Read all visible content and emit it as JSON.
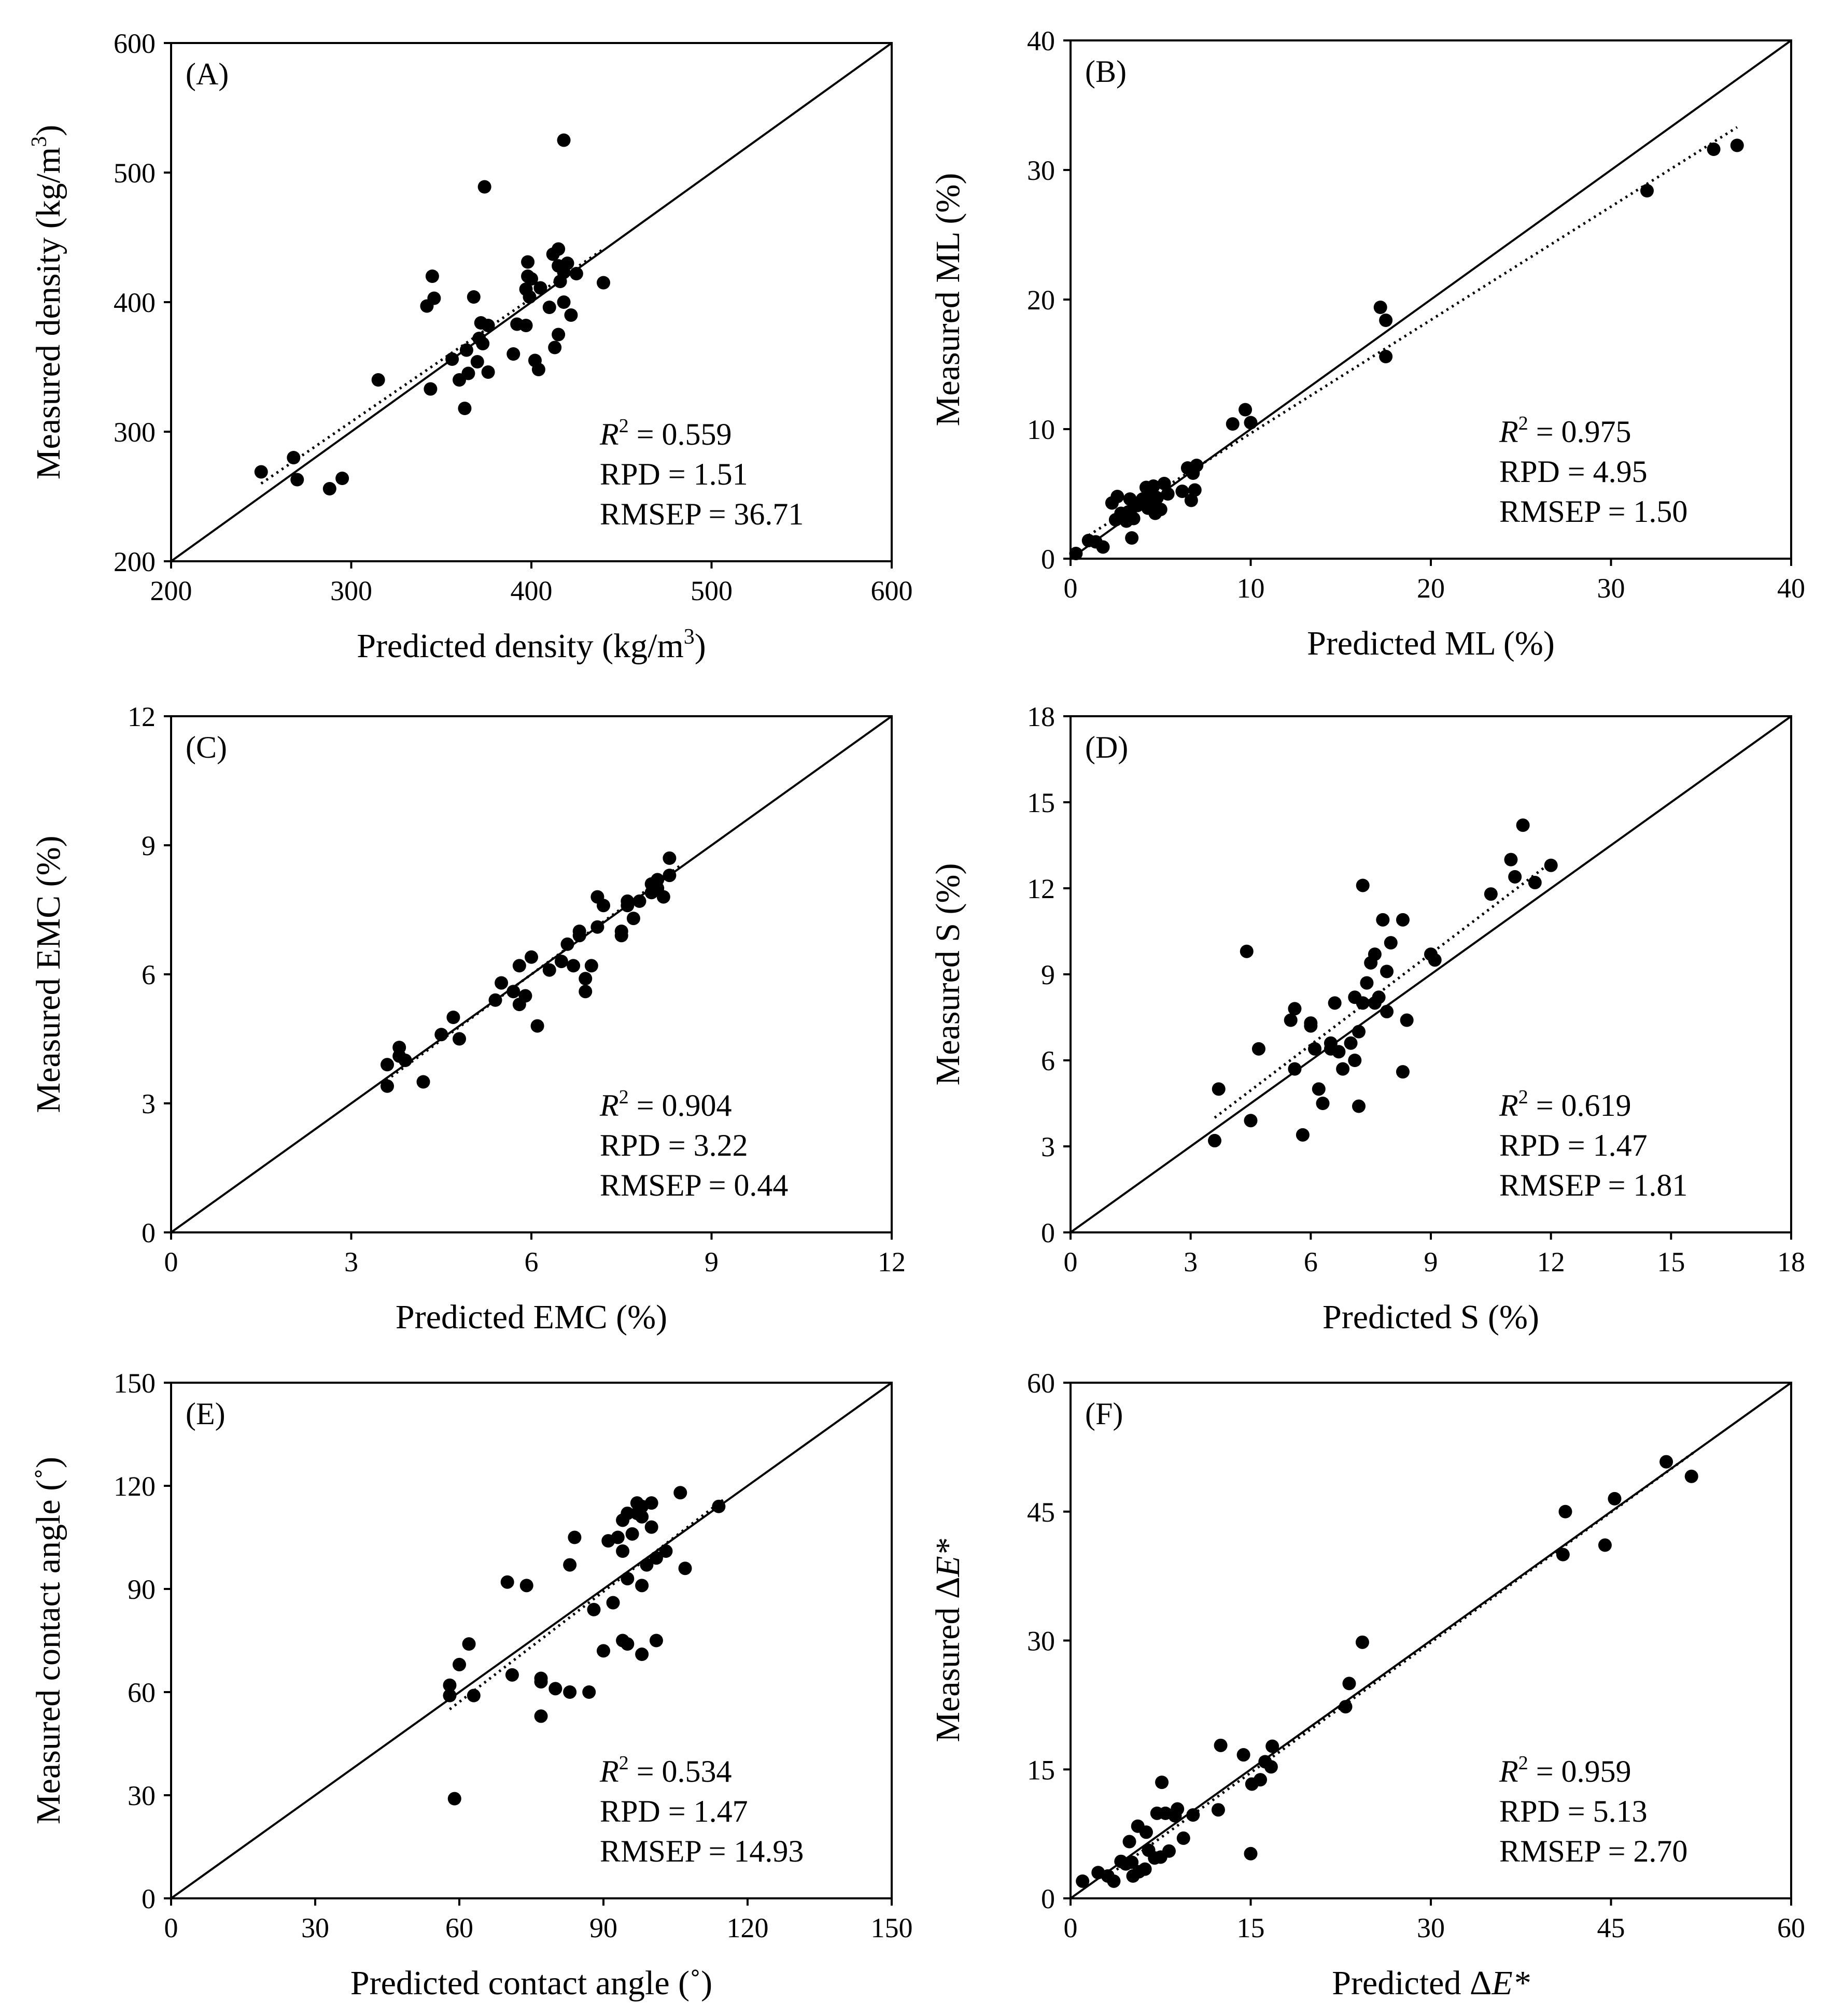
{
  "figure": {
    "background": "#ffffff",
    "ink": "#000000"
  },
  "chart_data": [
    {
      "type": "scatter",
      "panel": "(A)",
      "xlabel_main": "Predicted density (kg/m",
      "xlabel_sup": "3",
      "xlabel_end": ")",
      "ylabel_main": "Measured density (kg/m",
      "ylabel_sup": "3",
      "ylabel_end": ")",
      "xlim": [
        200,
        600
      ],
      "ylim": [
        200,
        600
      ],
      "xticks": [
        200,
        300,
        400,
        500,
        600
      ],
      "yticks": [
        200,
        300,
        400,
        500,
        600
      ],
      "stats": {
        "r2": "0.559",
        "rpd": "1.51",
        "rmsep": "36.71"
      },
      "fit_line": {
        "x": [
          250,
          440
        ],
        "y": [
          260,
          441
        ]
      },
      "points": [
        [
          250,
          269
        ],
        [
          268,
          280
        ],
        [
          270,
          263
        ],
        [
          288,
          256
        ],
        [
          295,
          264
        ],
        [
          315,
          340
        ],
        [
          342,
          397
        ],
        [
          345,
          420
        ],
        [
          346,
          403
        ],
        [
          344,
          333
        ],
        [
          356,
          356
        ],
        [
          360,
          340
        ],
        [
          363,
          318
        ],
        [
          364,
          363
        ],
        [
          365,
          345
        ],
        [
          368,
          404
        ],
        [
          370,
          354
        ],
        [
          371,
          372
        ],
        [
          372,
          384
        ],
        [
          373,
          368
        ],
        [
          374,
          489
        ],
        [
          376,
          382
        ],
        [
          376,
          346
        ],
        [
          390,
          360
        ],
        [
          392,
          383
        ],
        [
          397,
          382
        ],
        [
          397,
          410
        ],
        [
          398,
          420
        ],
        [
          398,
          431
        ],
        [
          399,
          404
        ],
        [
          400,
          418
        ],
        [
          402,
          355
        ],
        [
          404,
          348
        ],
        [
          405,
          411
        ],
        [
          410,
          396
        ],
        [
          412,
          437
        ],
        [
          413,
          365
        ],
        [
          415,
          441
        ],
        [
          415,
          428
        ],
        [
          415,
          375
        ],
        [
          416,
          416
        ],
        [
          418,
          423
        ],
        [
          418,
          400
        ],
        [
          418,
          525
        ],
        [
          420,
          430
        ],
        [
          422,
          390
        ],
        [
          425,
          422
        ],
        [
          440,
          415
        ]
      ]
    },
    {
      "type": "scatter",
      "panel": "(B)",
      "xlabel": "Predicted ML (%)",
      "ylabel": "Measured ML (%)",
      "xlim": [
        0,
        40
      ],
      "ylim": [
        0,
        40
      ],
      "xticks": [
        0,
        10,
        20,
        30,
        40
      ],
      "yticks": [
        0,
        10,
        20,
        30,
        40
      ],
      "stats": {
        "r2": "0.975",
        "rpd": "4.95",
        "rmsep": "1.50"
      },
      "fit_line": {
        "x": [
          1,
          37
        ],
        "y": [
          1.8,
          33.3
        ]
      },
      "points": [
        [
          0.3,
          0.4
        ],
        [
          1,
          1.4
        ],
        [
          1.4,
          1.3
        ],
        [
          1.8,
          0.9
        ],
        [
          2.3,
          4.3
        ],
        [
          2.6,
          4.8
        ],
        [
          2.5,
          3
        ],
        [
          2.8,
          3.5
        ],
        [
          3.1,
          2.9
        ],
        [
          3.2,
          3.6
        ],
        [
          3.3,
          4.6
        ],
        [
          3.4,
          1.6
        ],
        [
          3.5,
          3.1
        ],
        [
          3.7,
          4.1
        ],
        [
          4,
          4.6
        ],
        [
          4.2,
          5.5
        ],
        [
          4.3,
          3.9
        ],
        [
          4.4,
          5
        ],
        [
          4.5,
          4.4
        ],
        [
          4.6,
          5.6
        ],
        [
          4.7,
          3.5
        ],
        [
          4.8,
          4.7
        ],
        [
          5,
          3.8
        ],
        [
          5.2,
          5.8
        ],
        [
          5.4,
          5
        ],
        [
          6.2,
          5.2
        ],
        [
          6.5,
          7
        ],
        [
          6.7,
          4.5
        ],
        [
          6.9,
          5.3
        ],
        [
          7,
          7.2
        ],
        [
          6.8,
          6.6
        ],
        [
          9,
          10.4
        ],
        [
          9.7,
          11.5
        ],
        [
          10,
          10.5
        ],
        [
          17.2,
          19.4
        ],
        [
          17.5,
          18.4
        ],
        [
          17.5,
          15.6
        ],
        [
          32,
          28.4
        ],
        [
          35.7,
          31.6
        ],
        [
          37,
          31.9
        ]
      ]
    },
    {
      "type": "scatter",
      "panel": "(C)",
      "xlabel": "Predicted EMC (%)",
      "ylabel": "Measured EMC (%)",
      "xlim": [
        0,
        12
      ],
      "ylim": [
        0,
        12
      ],
      "xticks": [
        0,
        3,
        6,
        9,
        12
      ],
      "yticks": [
        0,
        3,
        6,
        9,
        12
      ],
      "stats": {
        "r2": "0.904",
        "rpd": "3.22",
        "rmsep": "0.44"
      },
      "fit_line": {
        "x": [
          3.5,
          8.5
        ],
        "y": [
          3.45,
          8.55
        ]
      },
      "points": [
        [
          3.6,
          3.4
        ],
        [
          3.6,
          3.9
        ],
        [
          3.8,
          4.1
        ],
        [
          3.8,
          4.3
        ],
        [
          3.9,
          4
        ],
        [
          4.2,
          3.5
        ],
        [
          4.5,
          4.6
        ],
        [
          4.7,
          5
        ],
        [
          4.8,
          4.5
        ],
        [
          5.4,
          5.4
        ],
        [
          5.5,
          5.8
        ],
        [
          5.7,
          5.6
        ],
        [
          5.8,
          6.2
        ],
        [
          5.8,
          5.3
        ],
        [
          5.9,
          5.5
        ],
        [
          6,
          6.4
        ],
        [
          6.1,
          4.8
        ],
        [
          6.3,
          6.1
        ],
        [
          6.5,
          6.3
        ],
        [
          6.6,
          6.7
        ],
        [
          6.7,
          6.2
        ],
        [
          6.8,
          6.9
        ],
        [
          6.8,
          7
        ],
        [
          6.9,
          5.6
        ],
        [
          6.9,
          5.9
        ],
        [
          7,
          6.2
        ],
        [
          7.1,
          7.1
        ],
        [
          7.1,
          7.8
        ],
        [
          7.2,
          7.6
        ],
        [
          7.5,
          7
        ],
        [
          7.5,
          6.9
        ],
        [
          7.6,
          7.6
        ],
        [
          7.6,
          7.7
        ],
        [
          7.7,
          7.3
        ],
        [
          7.8,
          7.7
        ],
        [
          8,
          7.9
        ],
        [
          8,
          8.1
        ],
        [
          8.1,
          8
        ],
        [
          8.1,
          8.2
        ],
        [
          8.2,
          7.8
        ],
        [
          8.3,
          8.3
        ],
        [
          8.3,
          8.7
        ]
      ]
    },
    {
      "type": "scatter",
      "panel": "(D)",
      "xlabel": "Predicted S (%)",
      "ylabel": "Measured S (%)",
      "xlim": [
        0,
        18
      ],
      "ylim": [
        0,
        18
      ],
      "xticks": [
        0,
        3,
        6,
        9,
        12,
        15,
        18
      ],
      "yticks": [
        0,
        3,
        6,
        9,
        12,
        15,
        18
      ],
      "stats": {
        "r2": "0.619",
        "rpd": "1.47",
        "rmsep": "1.81"
      },
      "fit_line": {
        "x": [
          3.6,
          12
        ],
        "y": [
          4.0,
          12.9
        ]
      },
      "points": [
        [
          3.6,
          3.2
        ],
        [
          3.7,
          5
        ],
        [
          4.4,
          9.8
        ],
        [
          4.5,
          3.9
        ],
        [
          4.7,
          6.4
        ],
        [
          5.5,
          7.4
        ],
        [
          5.6,
          5.7
        ],
        [
          5.6,
          7.8
        ],
        [
          5.8,
          3.4
        ],
        [
          6,
          7.2
        ],
        [
          6,
          7.3
        ],
        [
          6.1,
          6.4
        ],
        [
          6.2,
          5
        ],
        [
          6.3,
          4.5
        ],
        [
          6.5,
          6.4
        ],
        [
          6.5,
          6.6
        ],
        [
          6.6,
          8
        ],
        [
          6.7,
          6.3
        ],
        [
          6.8,
          5.7
        ],
        [
          7,
          6.6
        ],
        [
          7.1,
          6
        ],
        [
          7.1,
          8.2
        ],
        [
          7.2,
          4.4
        ],
        [
          7.2,
          7
        ],
        [
          7.3,
          8
        ],
        [
          7.3,
          12.1
        ],
        [
          7.4,
          8.7
        ],
        [
          7.5,
          9.4
        ],
        [
          7.6,
          9.7
        ],
        [
          7.6,
          8
        ],
        [
          7.7,
          8.2
        ],
        [
          7.8,
          10.9
        ],
        [
          7.9,
          7.7
        ],
        [
          7.9,
          9.1
        ],
        [
          8,
          10.1
        ],
        [
          8.3,
          5.6
        ],
        [
          8.3,
          10.9
        ],
        [
          8.4,
          7.4
        ],
        [
          9,
          9.7
        ],
        [
          9.1,
          9.5
        ],
        [
          10.5,
          11.8
        ],
        [
          11,
          13
        ],
        [
          11.1,
          12.4
        ],
        [
          11.3,
          14.2
        ],
        [
          11.6,
          12.2
        ],
        [
          12,
          12.8
        ]
      ]
    },
    {
      "type": "scatter",
      "panel": "(E)",
      "xlabel": "Predicted contact  angle (˚)",
      "ylabel": "Measured contact  angle (˚)",
      "xlim": [
        0,
        150
      ],
      "ylim": [
        0,
        150
      ],
      "xticks": [
        0,
        30,
        60,
        90,
        120,
        150
      ],
      "yticks": [
        0,
        30,
        60,
        90,
        120,
        150
      ],
      "stats": {
        "r2": "0.534",
        "rpd": "1.47",
        "rmsep": "14.93"
      },
      "fit_line": {
        "x": [
          58,
          115
        ],
        "y": [
          55,
          116
        ]
      },
      "points": [
        [
          58,
          59
        ],
        [
          58,
          62
        ],
        [
          59,
          29
        ],
        [
          60,
          68
        ],
        [
          62,
          74
        ],
        [
          63,
          59
        ],
        [
          70,
          92
        ],
        [
          71,
          65
        ],
        [
          74,
          91
        ],
        [
          77,
          53
        ],
        [
          77,
          63
        ],
        [
          77,
          64
        ],
        [
          80,
          61
        ],
        [
          83,
          60
        ],
        [
          83,
          97
        ],
        [
          84,
          105
        ],
        [
          87,
          60
        ],
        [
          88,
          84
        ],
        [
          90,
          72
        ],
        [
          91,
          104
        ],
        [
          92,
          86
        ],
        [
          93,
          105
        ],
        [
          94,
          101
        ],
        [
          94,
          110
        ],
        [
          94,
          75
        ],
        [
          95,
          74
        ],
        [
          95,
          93
        ],
        [
          95,
          112
        ],
        [
          96,
          106
        ],
        [
          97,
          112
        ],
        [
          97,
          115
        ],
        [
          98,
          114
        ],
        [
          98,
          111
        ],
        [
          98,
          71
        ],
        [
          98,
          91
        ],
        [
          99,
          97
        ],
        [
          100,
          108
        ],
        [
          100,
          115
        ],
        [
          101,
          75
        ],
        [
          101,
          99
        ],
        [
          103,
          101
        ],
        [
          106,
          118
        ],
        [
          107,
          96
        ],
        [
          114,
          114
        ]
      ]
    },
    {
      "type": "scatter",
      "panel": "(F)",
      "xlabel_main": "Predicted Δ",
      "xlabel_italic": "E*",
      "ylabel_main": "Measured Δ",
      "ylabel_italic": "E*",
      "xlim": [
        0,
        60
      ],
      "ylim": [
        0,
        60
      ],
      "xticks": [
        0,
        15,
        30,
        45,
        60
      ],
      "yticks": [
        0,
        15,
        30,
        45,
        60
      ],
      "stats": {
        "r2": "0.959",
        "rpd": "5.13",
        "rmsep": "2.70"
      },
      "fit_line": {
        "x": [
          3,
          52
        ],
        "y": [
          2.5,
          52
        ]
      },
      "points": [
        [
          1,
          2
        ],
        [
          2.3,
          3
        ],
        [
          3.1,
          2.6
        ],
        [
          3.6,
          2
        ],
        [
          4.2,
          4.3
        ],
        [
          4.6,
          4
        ],
        [
          4.9,
          6.6
        ],
        [
          5.1,
          4.2
        ],
        [
          5.2,
          2.6
        ],
        [
          5.6,
          8.4
        ],
        [
          5.7,
          3.1
        ],
        [
          6.2,
          3.4
        ],
        [
          6.3,
          7.7
        ],
        [
          6.5,
          5.6
        ],
        [
          7,
          4.7
        ],
        [
          7.2,
          9.9
        ],
        [
          7.5,
          4.8
        ],
        [
          7.6,
          13.5
        ],
        [
          7.9,
          9.9
        ],
        [
          8.2,
          5.5
        ],
        [
          8.7,
          9.6
        ],
        [
          8.9,
          10.4
        ],
        [
          9.4,
          7
        ],
        [
          10.2,
          9.7
        ],
        [
          12.3,
          10.3
        ],
        [
          12.5,
          17.8
        ],
        [
          14.4,
          16.7
        ],
        [
          15,
          5.2
        ],
        [
          15.1,
          13.3
        ],
        [
          15.8,
          13.8
        ],
        [
          16.2,
          15.9
        ],
        [
          16.7,
          15.3
        ],
        [
          16.8,
          17.7
        ],
        [
          22.9,
          22.3
        ],
        [
          23.2,
          25
        ],
        [
          24.3,
          29.8
        ],
        [
          41,
          40
        ],
        [
          41.2,
          45
        ],
        [
          44.5,
          41.1
        ],
        [
          45.3,
          46.5
        ],
        [
          49.6,
          50.8
        ],
        [
          51.7,
          49.1
        ]
      ]
    }
  ]
}
